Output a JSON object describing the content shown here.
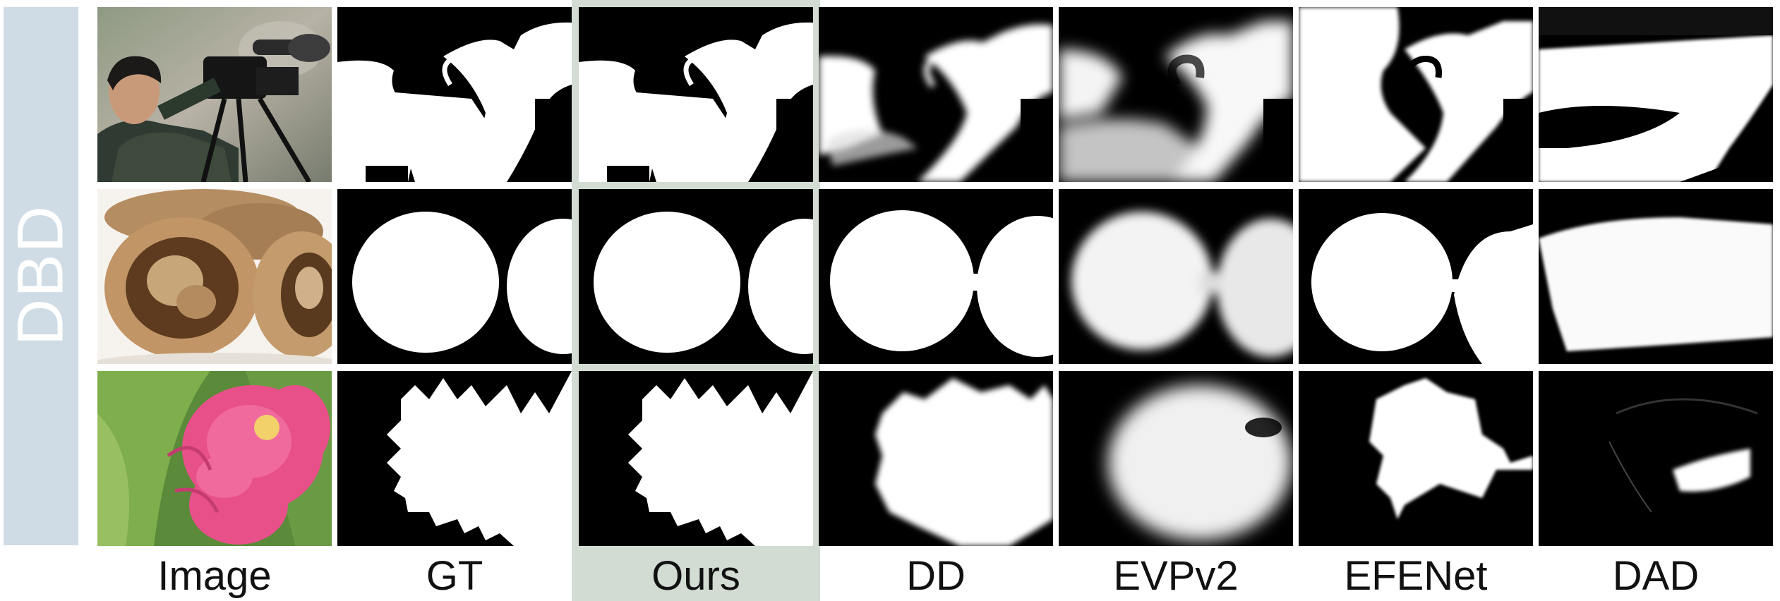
{
  "side_label": "DBD",
  "colors": {
    "side_band": "#cfdce6",
    "highlight": "#d2dcd3"
  },
  "columns": [
    {
      "key": "image",
      "label": "Image"
    },
    {
      "key": "gt",
      "label": "GT"
    },
    {
      "key": "ours",
      "label": "Ours"
    },
    {
      "key": "dd",
      "label": "DD"
    },
    {
      "key": "evpv2",
      "label": "EVPv2"
    },
    {
      "key": "efenet",
      "label": "EFENet"
    },
    {
      "key": "dad",
      "label": "DAD"
    }
  ],
  "rows": [
    {
      "subject": "man-with-camera"
    },
    {
      "subject": "walnuts"
    },
    {
      "subject": "pink-flower"
    }
  ]
}
